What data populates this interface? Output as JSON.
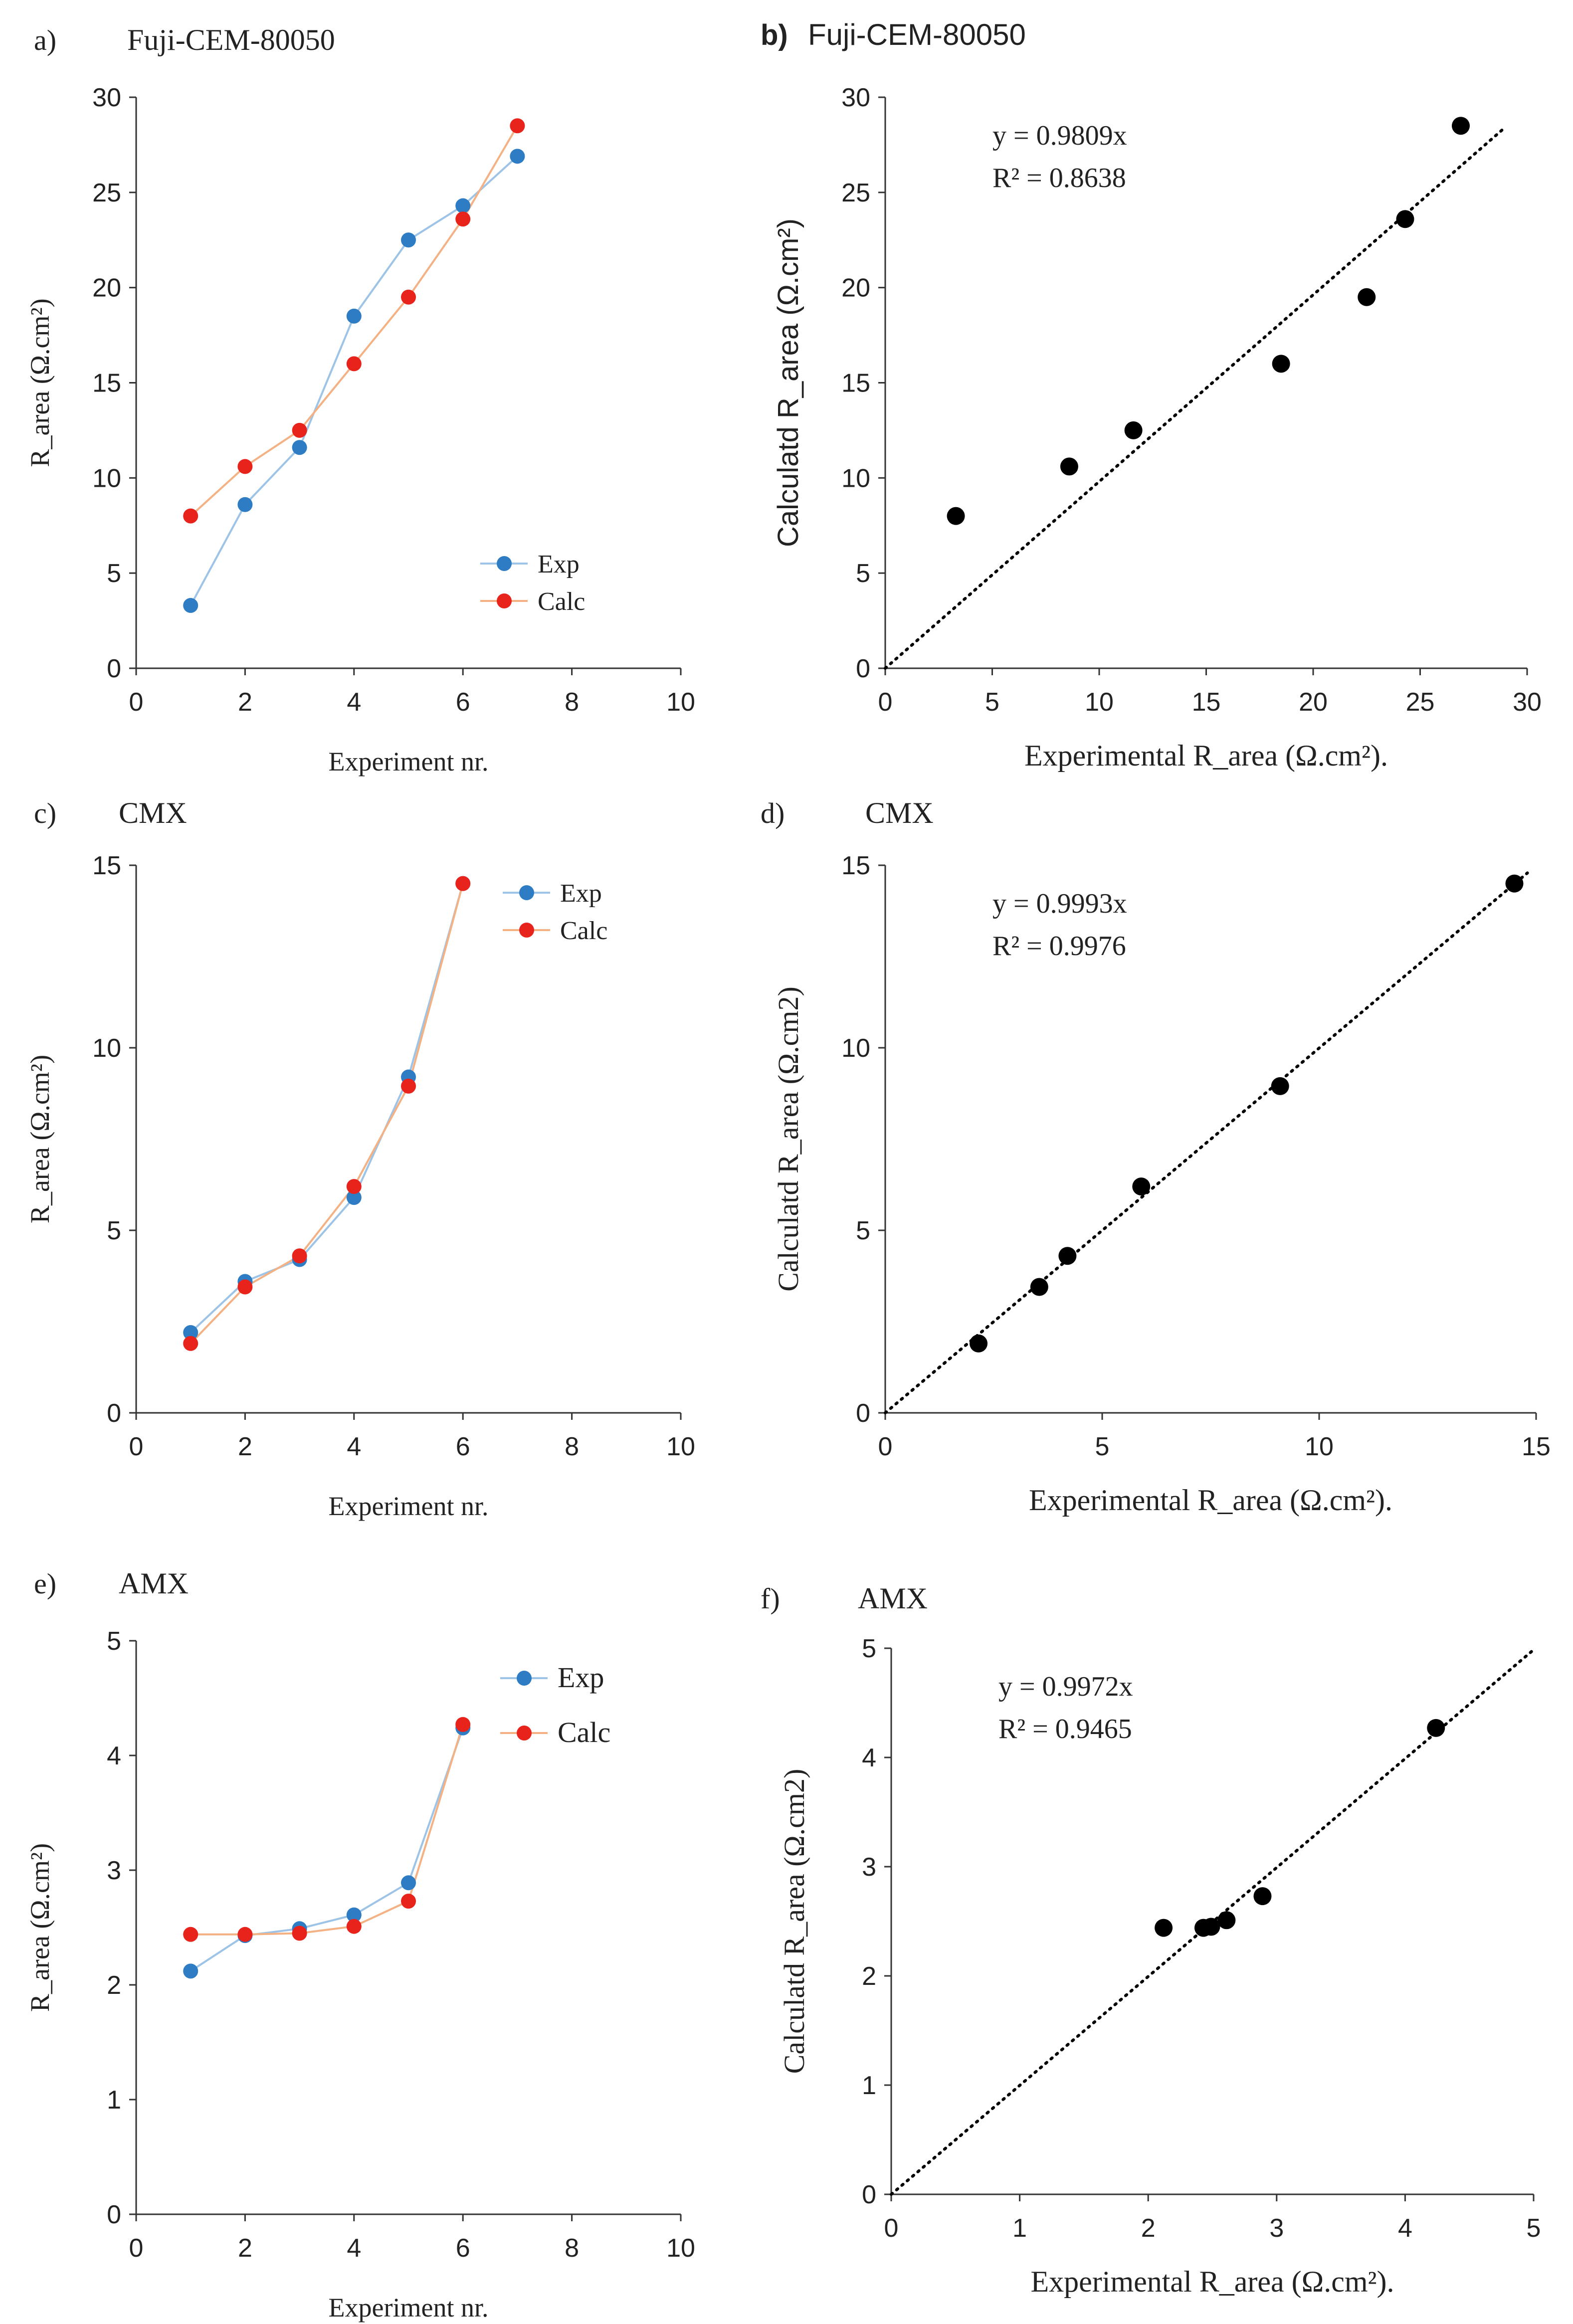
{
  "figure": {
    "panels": [
      {
        "key": "a",
        "letter": "a)",
        "title": "Fuji-CEM-80050"
      },
      {
        "key": "b",
        "letter": "b)",
        "title": "Fuji-CEM-80050"
      },
      {
        "key": "c",
        "letter": "c)",
        "title": "CMX"
      },
      {
        "key": "d",
        "letter": "d)",
        "title": "CMX"
      },
      {
        "key": "e",
        "letter": "e)",
        "title": "AMX"
      },
      {
        "key": "f",
        "letter": "f)",
        "title": "AMX"
      }
    ]
  },
  "colors": {
    "exp": "#2E7CC4",
    "calc": "#E8231C",
    "exp_line": "#9DC3E6",
    "calc_line": "#F4B183",
    "axis": "#333333",
    "scatter": "#000000"
  },
  "chart_data": [
    {
      "id": "a",
      "type": "line",
      "title": "Fuji-CEM-80050",
      "xlabel": "Experiment nr.",
      "ylabel": "R_area (Ω.cm²)",
      "xlim": [
        0,
        10
      ],
      "ylim": [
        0,
        30
      ],
      "xticks": [
        0,
        2,
        4,
        6,
        8,
        10
      ],
      "yticks": [
        0,
        5,
        10,
        15,
        20,
        25,
        30
      ],
      "x": [
        1,
        2,
        3,
        4,
        5,
        6,
        7
      ],
      "series": [
        {
          "name": "Exp",
          "values": [
            3.3,
            8.6,
            11.6,
            18.5,
            22.5,
            24.3,
            26.9
          ]
        },
        {
          "name": "Calc",
          "values": [
            8.0,
            10.6,
            12.5,
            16.0,
            19.5,
            23.6,
            28.5
          ]
        }
      ],
      "legend": [
        "Exp",
        "Calc"
      ],
      "legend_position": "bottom-right"
    },
    {
      "id": "b",
      "type": "scatter",
      "title": "Fuji-CEM-80050",
      "xlabel": "Experimental R_area (Ω.cm²).",
      "ylabel": "Calculatd R_area (Ω.cm²)",
      "xlim": [
        0,
        30
      ],
      "ylim": [
        0,
        30
      ],
      "xticks": [
        0,
        5,
        10,
        15,
        20,
        25,
        30
      ],
      "yticks": [
        0,
        5,
        10,
        15,
        20,
        25,
        30
      ],
      "points": [
        [
          3.3,
          8.0
        ],
        [
          8.6,
          10.6
        ],
        [
          11.6,
          12.5
        ],
        [
          18.5,
          16.0
        ],
        [
          22.5,
          19.5
        ],
        [
          24.3,
          23.6
        ],
        [
          26.9,
          28.5
        ]
      ],
      "trendline": {
        "slope": 0.9809,
        "x_range": [
          0,
          29
        ]
      },
      "equation": "y = 0.9809x",
      "r_squared": "R² = 0.8638"
    },
    {
      "id": "c",
      "type": "line",
      "title": "CMX",
      "xlabel": "Experiment nr.",
      "ylabel": "R_area (Ω.cm²)",
      "xlim": [
        0,
        10
      ],
      "ylim": [
        0,
        15
      ],
      "xticks": [
        0,
        2,
        4,
        6,
        8,
        10
      ],
      "yticks": [
        0,
        5,
        10,
        15
      ],
      "x": [
        1,
        2,
        3,
        4,
        5,
        6
      ],
      "series": [
        {
          "name": "Exp",
          "values": [
            2.2,
            3.6,
            4.2,
            5.9,
            9.2,
            14.5
          ]
        },
        {
          "name": "Calc",
          "values": [
            1.9,
            3.45,
            4.3,
            6.2,
            8.95,
            14.5
          ]
        }
      ],
      "legend": [
        "Exp",
        "Calc"
      ],
      "legend_position": "top-right"
    },
    {
      "id": "d",
      "type": "scatter",
      "title": "CMX",
      "xlabel": "Experimental R_area (Ω.cm²).",
      "ylabel": "Calculatd R_area (Ω.cm2)",
      "xlim": [
        0,
        15
      ],
      "ylim": [
        0,
        15
      ],
      "xticks": [
        0,
        5,
        10,
        15
      ],
      "yticks": [
        0,
        5,
        10,
        15
      ],
      "points": [
        [
          2.15,
          1.9
        ],
        [
          3.55,
          3.45
        ],
        [
          4.2,
          4.3
        ],
        [
          5.9,
          6.2
        ],
        [
          9.1,
          8.95
        ],
        [
          14.5,
          14.5
        ]
      ],
      "trendline": {
        "slope": 0.9993,
        "x_range": [
          0,
          14.8
        ]
      },
      "equation": "y = 0.9993x",
      "r_squared": "R² = 0.9976"
    },
    {
      "id": "e",
      "type": "line",
      "title": "AMX",
      "xlabel": "Experiment nr.",
      "ylabel": "R_area (Ω.cm²)",
      "xlim": [
        0,
        10
      ],
      "ylim": [
        0,
        5
      ],
      "xticks": [
        0,
        2,
        4,
        6,
        8,
        10
      ],
      "yticks": [
        0,
        1,
        2,
        3,
        4,
        5
      ],
      "x": [
        1,
        2,
        3,
        4,
        5,
        6
      ],
      "series": [
        {
          "name": "Exp",
          "values": [
            2.12,
            2.43,
            2.49,
            2.61,
            2.89,
            4.24
          ]
        },
        {
          "name": "Calc",
          "values": [
            2.44,
            2.44,
            2.45,
            2.51,
            2.73,
            4.27
          ]
        }
      ],
      "legend": [
        "Exp",
        "Calc"
      ],
      "legend_position": "top-right"
    },
    {
      "id": "f",
      "type": "scatter",
      "title": "AMX",
      "xlabel": "Experimental R_area (Ω.cm²).",
      "ylabel": "Calculatd R_area (Ω.cm2)",
      "xlim": [
        0,
        5
      ],
      "ylim": [
        0,
        5
      ],
      "xticks": [
        0,
        1,
        2,
        3,
        4,
        5
      ],
      "yticks": [
        0,
        1,
        2,
        3,
        4,
        5
      ],
      "points": [
        [
          2.12,
          2.44
        ],
        [
          2.43,
          2.44
        ],
        [
          2.49,
          2.45
        ],
        [
          2.61,
          2.51
        ],
        [
          2.89,
          2.73
        ],
        [
          4.24,
          4.27
        ]
      ],
      "trendline": {
        "slope": 0.9972,
        "x_range": [
          0,
          5
        ]
      },
      "equation": "y = 0.9972x",
      "r_squared": "R² = 0.9465"
    }
  ]
}
